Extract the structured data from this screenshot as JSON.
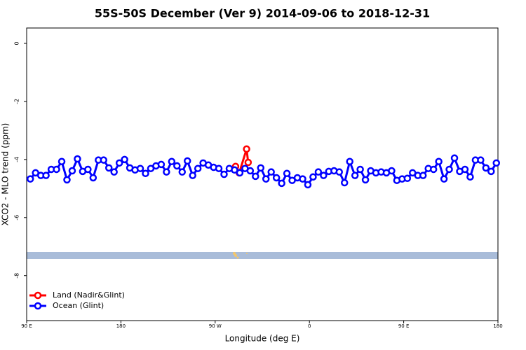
{
  "chart_data": {
    "type": "line",
    "title": "55S-50S December (Ver 9)   2014-09-06 to 2018-12-31",
    "xlabel": "Longitude (deg E)",
    "ylabel": "XCO2 - MLO trend (ppm)",
    "xlim": [
      90,
      540
    ],
    "ylim": [
      -9.55,
      0.53
    ],
    "xticks": [
      {
        "value": 90,
        "label": "90 E"
      },
      180,
      {
        "value": 270,
        "label": "90 W"
      },
      {
        "value": 360,
        "label": "0"
      },
      {
        "value": 450,
        "label": "90 E"
      },
      {
        "value": 540,
        "label": "180"
      }
    ],
    "yticks": [
      -8,
      -6,
      -4,
      -2,
      0
    ],
    "legend": "bottom-left",
    "series": [
      {
        "name": "Land (Nadir&Glint)",
        "color": "#ff0000",
        "x": [
          289.5,
          293,
          300,
          301.5
        ],
        "values": [
          -4.24,
          -4.46,
          -3.64,
          -4.1
        ]
      },
      {
        "name": "Ocean (Glint)",
        "color": "#0000ff",
        "x": [
          93.5,
          98.5,
          103.5,
          108.5,
          113.5,
          118.5,
          123.5,
          128.5,
          133.5,
          138.5,
          143.5,
          148.5,
          153.5,
          158.5,
          163.5,
          168.5,
          173.5,
          178.5,
          183.5,
          188.5,
          193.5,
          198.5,
          203.5,
          208.5,
          213.5,
          218.5,
          223.5,
          228.5,
          233.5,
          238.5,
          243.5,
          248.5,
          253.5,
          258.5,
          263.5,
          268.5,
          273.5,
          278.5,
          283.5,
          288.5,
          293.5,
          298.5,
          303.5,
          308.5,
          313.5,
          318.5,
          323.5,
          328.5,
          333.5,
          338.5,
          343.5,
          348.5,
          353.5,
          358.5,
          363.5,
          368.5,
          373.5,
          378.5,
          383.5,
          388.5,
          393.5,
          398.5,
          403.5,
          408.5,
          413.5,
          418.5,
          423.5,
          428.5,
          433.5,
          438.5,
          443.5,
          448.5,
          453.5,
          458.5,
          463.5,
          468.5,
          473.5,
          478.5,
          483.5,
          488.5,
          493.5,
          498.5,
          503.5,
          508.5,
          513.5,
          518.5,
          523.5,
          528.5,
          533.5,
          538.5
        ],
        "values": [
          -4.67,
          -4.46,
          -4.55,
          -4.55,
          -4.34,
          -4.34,
          -4.07,
          -4.7,
          -4.39,
          -3.98,
          -4.41,
          -4.34,
          -4.63,
          -4.02,
          -4.02,
          -4.29,
          -4.43,
          -4.12,
          -4.0,
          -4.29,
          -4.36,
          -4.31,
          -4.48,
          -4.31,
          -4.22,
          -4.17,
          -4.43,
          -4.07,
          -4.22,
          -4.43,
          -4.05,
          -4.55,
          -4.31,
          -4.12,
          -4.19,
          -4.27,
          -4.31,
          -4.51,
          -4.31,
          -4.36,
          -4.46,
          -4.31,
          -4.39,
          -4.58,
          -4.29,
          -4.67,
          -4.43,
          -4.63,
          -4.82,
          -4.48,
          -4.72,
          -4.63,
          -4.67,
          -4.87,
          -4.6,
          -4.43,
          -4.55,
          -4.41,
          -4.39,
          -4.43,
          -4.8,
          -4.07,
          -4.55,
          -4.34,
          -4.7,
          -4.39,
          -4.46,
          -4.43,
          -4.46,
          -4.39,
          -4.72,
          -4.67,
          -4.65,
          -4.46,
          -4.55,
          -4.55,
          -4.31,
          -4.34,
          -4.07,
          -4.67,
          -4.34,
          -3.95,
          -4.41,
          -4.34,
          -4.6,
          -4.02,
          -4.02,
          -4.29,
          -4.41,
          -4.12
        ]
      }
    ]
  }
}
